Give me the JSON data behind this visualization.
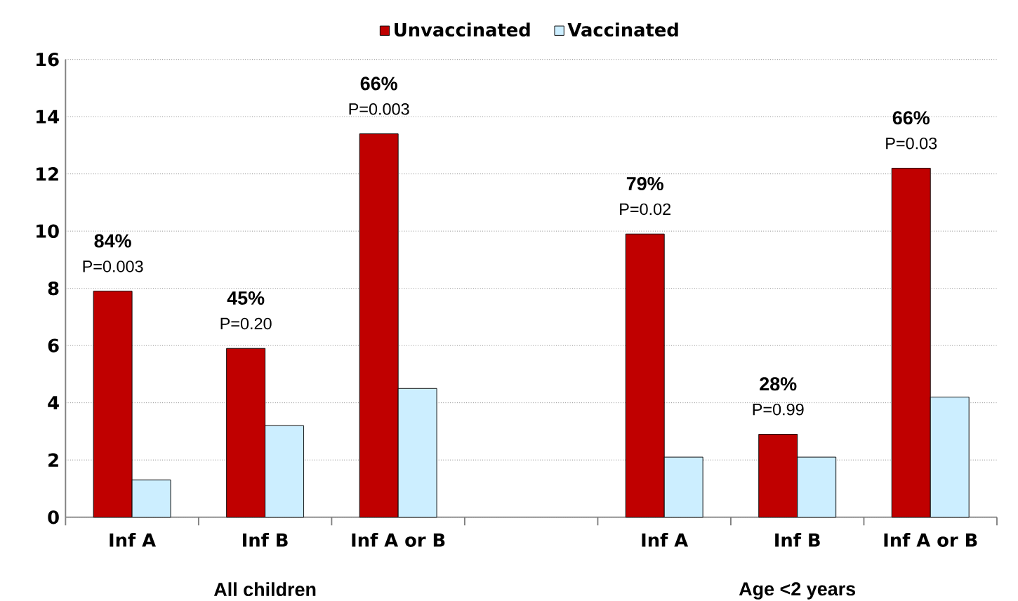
{
  "chart_data": {
    "type": "bar",
    "categories": [
      "Inf A",
      "Inf B",
      "Inf A or B",
      null,
      "Inf A",
      "Inf B",
      "Inf A or B"
    ],
    "series": [
      {
        "name": "Unvaccinated",
        "color": "#c00000",
        "values": [
          7.9,
          5.9,
          13.4,
          null,
          9.9,
          2.9,
          12.2
        ]
      },
      {
        "name": "Vaccinated",
        "color": "#cceeff",
        "values": [
          1.3,
          3.2,
          4.5,
          null,
          2.1,
          2.1,
          4.2
        ]
      }
    ],
    "ylim": [
      0,
      16
    ],
    "yticks": [
      0,
      2,
      4,
      6,
      8,
      10,
      12,
      14,
      16
    ],
    "grid": "y",
    "legend": "top",
    "annotations": [
      "84%",
      "P=0.003",
      "45%",
      "P=0.20",
      "66%",
      "P=0.003",
      "79%",
      "P=0.02",
      "28%",
      "P=0.99",
      "66%",
      "P=0.03",
      "All children",
      "Age <2 years"
    ]
  }
}
